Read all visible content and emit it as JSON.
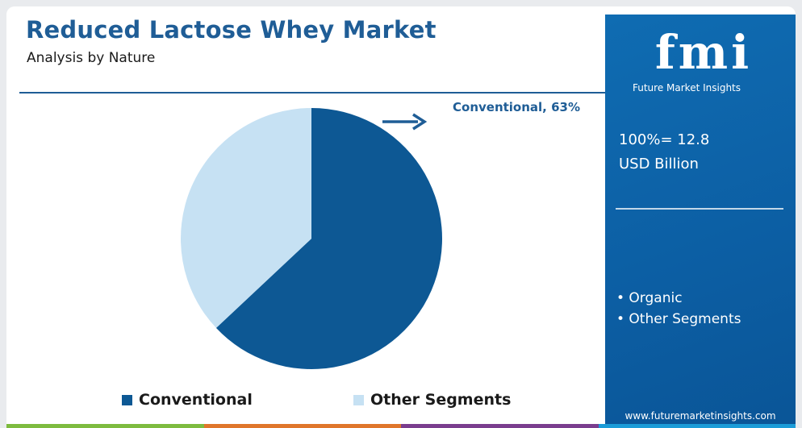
{
  "title": "Reduced Lactose Whey Market",
  "subtitle": "Analysis by Nature",
  "callout": "Conventional, 63%",
  "total": {
    "line1": "100%= 12.8",
    "line2": "USD Billion"
  },
  "brand": {
    "logo": "fmi",
    "name": "Future Market Insights",
    "website": "www.futuremarketinsights.com"
  },
  "panel_segments": [
    "• Organic",
    "• Other Segments"
  ],
  "colors": {
    "dark": "#0d5894",
    "light": "#c6e1f3",
    "accent": "#1f5d96",
    "panel": "#0c5ea3"
  },
  "bottom_bar_colors": [
    "#7dbb3f",
    "#e0762b",
    "#7a3d8e",
    "#1b9cd8"
  ],
  "chart_data": {
    "type": "pie",
    "title": "Reduced Lactose Whey Market",
    "subtitle": "Analysis by Nature",
    "slices": [
      {
        "label": "Conventional",
        "value": 63,
        "color": "#0d5894"
      },
      {
        "label": "Other Segments",
        "value": 37,
        "color": "#c6e1f3"
      }
    ],
    "legend_position": "bottom"
  }
}
